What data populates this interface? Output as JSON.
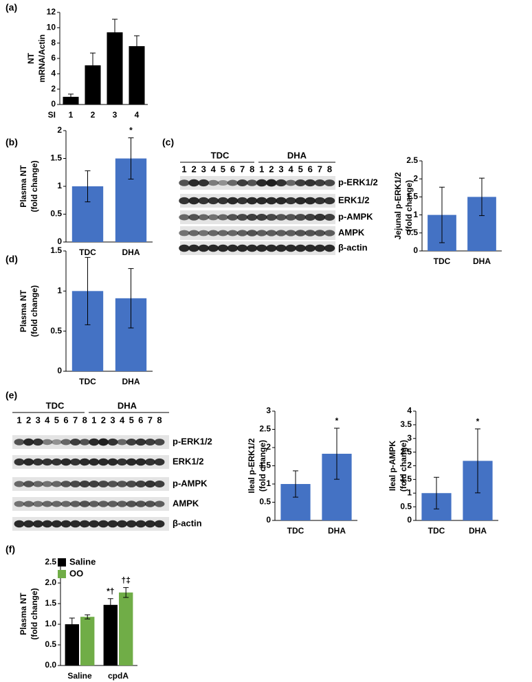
{
  "panel_labels": [
    "(a)",
    "(b)",
    "(c)",
    "(d)",
    "(e)",
    "(f)"
  ],
  "chart_data": [
    {
      "type": "bar",
      "ylabel": [
        "NT",
        "mRNA/Actin"
      ],
      "xlabel": "SI",
      "categories": [
        "1",
        "2",
        "3",
        "4"
      ],
      "values": [
        1.0,
        5.1,
        9.4,
        7.6
      ],
      "errors": [
        0.35,
        1.6,
        1.7,
        1.35
      ],
      "color": "#000000",
      "ylim": [
        0,
        12
      ],
      "yticks": [
        0,
        2,
        4,
        6,
        8,
        10,
        12
      ]
    },
    {
      "type": "bar",
      "ylabel": [
        "Plasma NT",
        "(fold change)"
      ],
      "categories": [
        "TDC",
        "DHA"
      ],
      "values": [
        1,
        1.5
      ],
      "errors": [
        0.28,
        0.37
      ],
      "annotations": [
        null,
        "*"
      ],
      "color": "#4472c4",
      "ylim": [
        0,
        2
      ],
      "yticks": [
        0,
        0.5,
        1,
        1.5,
        2
      ]
    },
    {
      "type": "bar",
      "ylabel": [
        "Jejunal p-ERK1/2",
        "(fold change)"
      ],
      "categories": [
        "TDC",
        "DHA"
      ],
      "values": [
        1,
        1.5
      ],
      "errors": [
        0.77,
        0.52
      ],
      "color": "#4472c4",
      "ylim": [
        0,
        2.5
      ],
      "yticks": [
        0,
        0.5,
        1,
        1.5,
        2,
        2.5
      ]
    },
    {
      "type": "bar",
      "ylabel": [
        "Plasma NT",
        "(fold change)"
      ],
      "categories": [
        "TDC",
        "DHA"
      ],
      "values": [
        1,
        0.91
      ],
      "errors": [
        0.42,
        0.37
      ],
      "color": "#4472c4",
      "ylim": [
        0,
        1.5
      ],
      "yticks": [
        0,
        0.5,
        1,
        1.5
      ]
    },
    {
      "type": "bar",
      "ylabel": [
        "Ileal p-ERK1/2",
        "(fold change)"
      ],
      "categories": [
        "TDC",
        "DHA"
      ],
      "values": [
        1,
        1.83
      ],
      "errors": [
        0.36,
        0.7
      ],
      "annotations": [
        null,
        "*"
      ],
      "color": "#4472c4",
      "ylim": [
        0,
        3
      ],
      "yticks": [
        0,
        0.5,
        1,
        1.5,
        2,
        2.5,
        3
      ]
    },
    {
      "type": "bar",
      "ylabel": [
        "Ileal p-AMPK",
        "(fold change)"
      ],
      "categories": [
        "TDC",
        "DHA"
      ],
      "values": [
        1,
        2.18
      ],
      "errors": [
        0.58,
        1.17
      ],
      "annotations": [
        null,
        "*"
      ],
      "color": "#4472c4",
      "ylim": [
        0,
        4
      ],
      "yticks": [
        0,
        0.5,
        1,
        1.5,
        2,
        2.5,
        3,
        3.5,
        4
      ]
    },
    {
      "type": "bar",
      "ylabel": [
        "Plasma NT",
        "(fold change)"
      ],
      "categories": [
        "Saline",
        "cpdA"
      ],
      "series": [
        {
          "name": "Saline",
          "color": "#000000",
          "values": [
            1.0,
            1.47
          ],
          "errors": [
            0.15,
            0.15
          ],
          "annotations": [
            null,
            "*†"
          ]
        },
        {
          "name": "OO",
          "color": "#70ad47",
          "values": [
            1.18,
            1.77
          ],
          "errors": [
            0.05,
            0.12
          ],
          "annotations": [
            null,
            "†‡"
          ]
        }
      ],
      "ylim": [
        0,
        2.5
      ],
      "yticks": [
        {
          "value": 0,
          "label": "0.0"
        },
        0.5,
        {
          "value": 1,
          "label": "1.0"
        },
        1.5,
        {
          "value": 2,
          "label": "2.0"
        },
        2.5
      ],
      "legend": "upper left"
    }
  ],
  "blots": [
    {
      "groups": [
        "TDC",
        "DHA"
      ],
      "lanes": [
        "1",
        "2",
        "3",
        "4",
        "5",
        "6",
        "7",
        "8"
      ],
      "rows": [
        "p-ERK1/2",
        "ERK1/2",
        "p-AMPK",
        "AMPK",
        "β-actin"
      ]
    },
    {
      "groups": [
        "TDC",
        "DHA"
      ],
      "lanes": [
        "1",
        "2",
        "3",
        "4",
        "5",
        "6",
        "7",
        "8"
      ],
      "rows": [
        "p-ERK1/2",
        "ERK1/2",
        "p-AMPK",
        "AMPK",
        "β-actin"
      ]
    }
  ]
}
